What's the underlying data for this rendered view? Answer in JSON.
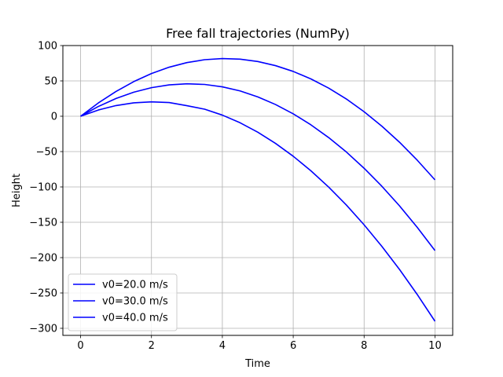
{
  "chart_data": {
    "type": "line",
    "title": "Free fall trajectories (NumPy)",
    "xlabel": "Time",
    "ylabel": "Height",
    "xlim": [
      -0.5,
      10.5
    ],
    "ylim": [
      -310,
      100
    ],
    "xticks": [
      0,
      2,
      4,
      6,
      8,
      10
    ],
    "yticks": [
      100,
      50,
      0,
      -50,
      -100,
      -150,
      -200,
      -250,
      -300
    ],
    "grid": true,
    "legend_position": "lower-left",
    "line_color": "#0000ff",
    "x": [
      0,
      0.5,
      1,
      1.5,
      2,
      2.5,
      3,
      3.5,
      4,
      4.5,
      5,
      5.5,
      6,
      6.5,
      7,
      7.5,
      8,
      8.5,
      9,
      9.5,
      10
    ],
    "series": [
      {
        "name": "v0=20.0 m/s",
        "values": [
          0,
          8.8,
          15.1,
          19.0,
          20.4,
          19.4,
          14.9,
          10.0,
          1.6,
          -9.2,
          -22.6,
          -38.4,
          -56.6,
          -77.2,
          -100.2,
          -125.6,
          -153.6,
          -184.0,
          -216.8,
          -252.2,
          -290.0
        ]
      },
      {
        "name": "v0=30.0 m/s",
        "values": [
          0,
          13.8,
          25.1,
          34.0,
          40.4,
          44.4,
          45.9,
          45.0,
          41.6,
          35.8,
          27.4,
          16.6,
          3.4,
          -12.2,
          -30.2,
          -50.6,
          -73.6,
          -99.0,
          -126.8,
          -157.2,
          -190.0
        ]
      },
      {
        "name": "v0=40.0 m/s",
        "values": [
          0,
          18.8,
          35.1,
          49.0,
          60.4,
          69.4,
          75.9,
          80.0,
          81.6,
          80.8,
          77.4,
          71.6,
          63.4,
          52.8,
          39.8,
          24.4,
          6.4,
          -14.0,
          -36.8,
          -62.2,
          -90.0
        ]
      }
    ]
  }
}
